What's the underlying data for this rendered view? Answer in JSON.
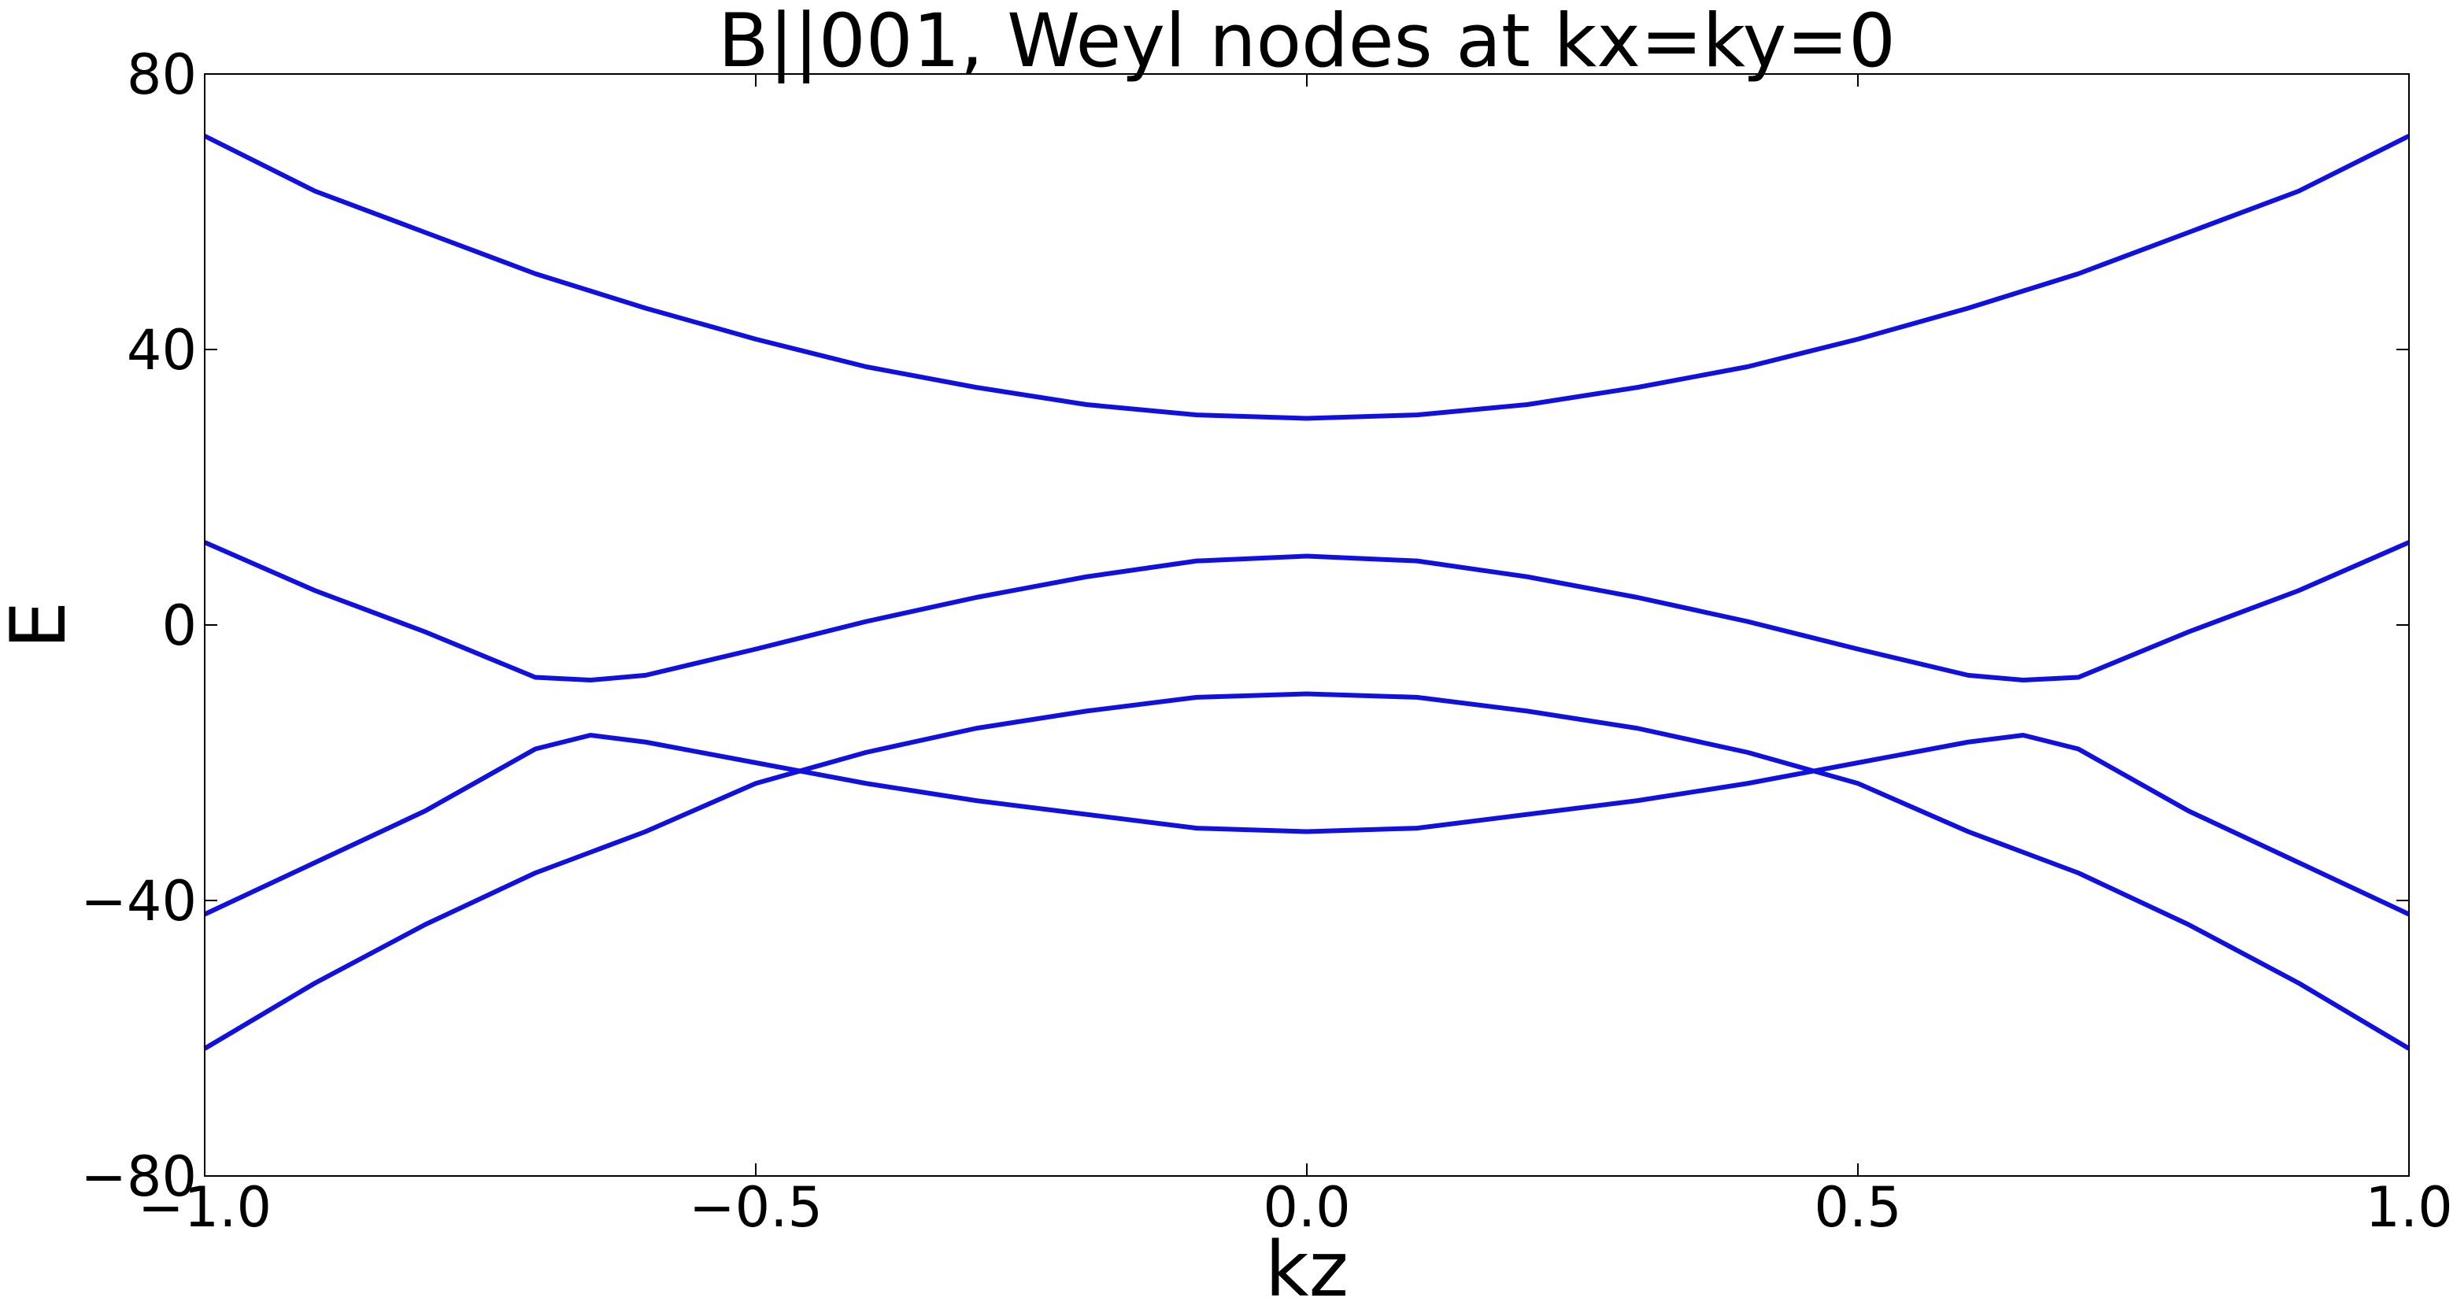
{
  "chart_data": {
    "type": "line",
    "title": "B||001, Weyl nodes at kx=ky=0",
    "x_label": "kz",
    "y_label": "E",
    "x": [
      -1,
      -0.9,
      -0.8,
      -0.7,
      -0.65,
      -0.6,
      -0.5,
      -0.4,
      -0.3,
      -0.2,
      -0.1,
      0,
      0.1,
      0.2,
      0.3,
      0.4,
      0.5,
      0.6,
      0.65,
      0.7,
      0.8,
      0.9,
      1
    ],
    "series": [
      {
        "color": "#1010e0",
        "values": [
          71,
          63,
          57,
          51,
          48.5,
          46,
          41.5,
          37.5,
          34.5,
          32,
          30.5,
          30,
          30.5,
          32,
          34.5,
          37.5,
          41.5,
          46,
          48.5,
          51,
          57,
          63,
          71
        ]
      },
      {
        "color": "#1010e0",
        "values": [
          12,
          5,
          -1,
          -7.6,
          -8,
          -7.3,
          -3.5,
          0.5,
          4,
          7,
          9.3,
          10,
          9.3,
          7,
          4,
          0.5,
          -3.5,
          -7.3,
          -8,
          -7.6,
          -1,
          5,
          12
        ]
      },
      {
        "color": "#1010e0",
        "values": [
          -42,
          -34.5,
          -27,
          -18,
          -16,
          -17,
          -20,
          -23,
          -25.5,
          -27.5,
          -29.5,
          -30,
          -29.5,
          -27.5,
          -25.5,
          -23,
          -20,
          -17,
          -16,
          -18,
          -27,
          -34.5,
          -42
        ]
      },
      {
        "color": "#1010e0",
        "values": [
          -61.5,
          -52,
          -43.5,
          -36,
          -33,
          -30,
          -23,
          -18.5,
          -15,
          -12.5,
          -10.5,
          -10,
          -10.5,
          -12.5,
          -15,
          -18.5,
          -23,
          -30,
          -33,
          -36,
          -43.5,
          -52,
          -61.5
        ]
      }
    ],
    "xlim": [
      -1,
      1
    ],
    "ylim": [
      -80,
      80
    ],
    "xticks": [
      {
        "value": -1,
        "label": "−1.0"
      },
      {
        "value": -0.5,
        "label": "−0.5"
      },
      {
        "value": 0,
        "label": "0.0"
      },
      {
        "value": 0.5,
        "label": "0.5"
      },
      {
        "value": 1,
        "label": "1.0"
      }
    ],
    "yticks": [
      {
        "value": -80,
        "label": "−80"
      },
      {
        "value": -40,
        "label": "−40"
      },
      0,
      40,
      80
    ],
    "grid": false
  }
}
